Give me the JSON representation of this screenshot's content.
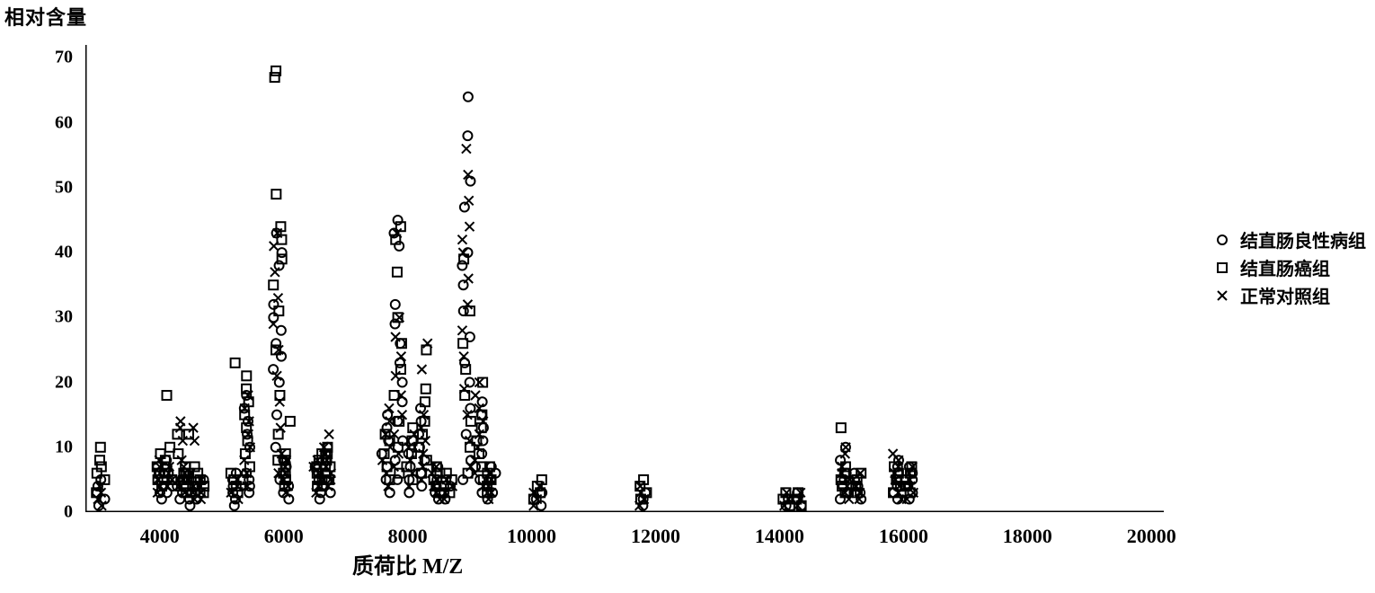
{
  "chart": {
    "type": "scatter",
    "ylabel": "相对含量",
    "xlabel": "质荷比 M/Z",
    "xlim": [
      2800,
      20200
    ],
    "ylim": [
      0,
      72
    ],
    "xtick_major_positions": [
      4000,
      6000,
      8000,
      10000,
      12000,
      14000,
      16000,
      18000,
      20000
    ],
    "xtick_major_labels": [
      "4000",
      "6000",
      "8000",
      "10000",
      "12000",
      "14000",
      "16000",
      "18000",
      "20000"
    ],
    "xtick_minor_step": 1000,
    "ytick_major_positions": [
      0,
      10,
      20,
      30,
      40,
      50,
      60,
      70
    ],
    "ytick_major_labels": [
      "0",
      "10",
      "20",
      "30",
      "40",
      "50",
      "60",
      "70"
    ],
    "ytick_minor_step": 5,
    "background_color": "#ffffff",
    "axis_color": "#000000",
    "axis_width": 3,
    "fontsize_title": 22,
    "fontsize_ticks": 22,
    "marker_size": 10,
    "marker_stroke": 2,
    "marker_color": "#000000",
    "legend": {
      "items": [
        {
          "marker": "circle",
          "label": "结直肠良性病组"
        },
        {
          "marker": "square",
          "label": "结直肠癌组"
        },
        {
          "marker": "x",
          "label": "正常对照组"
        }
      ],
      "fontsize": 20
    },
    "columns": [
      {
        "x": 3050,
        "circle": [
          1,
          2,
          3,
          4,
          5
        ],
        "square": [
          3,
          5,
          6,
          7,
          8,
          10
        ],
        "cross": [
          1,
          2,
          3,
          4
        ]
      },
      {
        "x": 4000,
        "circle": [
          2,
          3,
          4,
          5,
          6,
          7
        ],
        "square": [
          4,
          5,
          6,
          7,
          9
        ],
        "cross": [
          3,
          4,
          5,
          6,
          7,
          8
        ]
      },
      {
        "x": 4150,
        "circle": [
          3,
          4,
          5,
          6,
          7,
          8
        ],
        "square": [
          5,
          6,
          7,
          8,
          10,
          18
        ],
        "cross": [
          4,
          5,
          6,
          7
        ]
      },
      {
        "x": 4350,
        "circle": [
          2,
          3,
          4,
          5,
          6
        ],
        "square": [
          4,
          5,
          6,
          7,
          9,
          12
        ],
        "cross": [
          3,
          4,
          5,
          6,
          7,
          8,
          11,
          13,
          14
        ]
      },
      {
        "x": 4500,
        "circle": [
          1,
          2,
          3,
          4,
          5
        ],
        "square": [
          3,
          4,
          5,
          6,
          7,
          12
        ],
        "cross": [
          2,
          3,
          4,
          5,
          6,
          11,
          13
        ]
      },
      {
        "x": 4650,
        "circle": [
          2,
          3,
          4,
          5
        ],
        "square": [
          3,
          4,
          5,
          6
        ],
        "cross": [
          2,
          3,
          4,
          5
        ]
      },
      {
        "x": 5200,
        "circle": [
          1,
          2,
          3,
          4,
          5,
          6
        ],
        "square": [
          3,
          4,
          5,
          6,
          23
        ],
        "cross": [
          2,
          3,
          4,
          5
        ]
      },
      {
        "x": 5400,
        "circle": [
          3,
          4,
          5,
          6,
          10,
          12,
          14,
          16,
          18
        ],
        "square": [
          5,
          7,
          9,
          11,
          13,
          15,
          17,
          19,
          21
        ],
        "cross": [
          4,
          6,
          8,
          10,
          12,
          14,
          16,
          18
        ]
      },
      {
        "x": 5900,
        "circle": [
          5,
          10,
          15,
          20,
          22,
          24,
          26,
          28,
          30,
          32,
          38,
          40,
          43
        ],
        "square": [
          8,
          12,
          18,
          25,
          31,
          35,
          39,
          42,
          44,
          49,
          67,
          68
        ],
        "cross": [
          6,
          9,
          13,
          17,
          21,
          25,
          29,
          33,
          37,
          41,
          43
        ]
      },
      {
        "x": 6050,
        "circle": [
          2,
          3,
          4,
          5,
          6,
          7,
          8
        ],
        "square": [
          4,
          5,
          6,
          7,
          8,
          9,
          14
        ],
        "cross": [
          3,
          4,
          5,
          6,
          7,
          8
        ]
      },
      {
        "x": 6550,
        "circle": [
          2,
          3,
          4,
          5,
          6,
          7
        ],
        "square": [
          4,
          5,
          6,
          7,
          8,
          9
        ],
        "cross": [
          3,
          4,
          5,
          6,
          7,
          8
        ]
      },
      {
        "x": 6700,
        "circle": [
          3,
          4,
          5,
          6,
          7,
          8,
          9,
          10
        ],
        "square": [
          5,
          6,
          7,
          8,
          9,
          10
        ],
        "cross": [
          4,
          5,
          6,
          7,
          8,
          9,
          10,
          12
        ]
      },
      {
        "x": 7650,
        "circle": [
          3,
          5,
          7,
          9,
          11,
          13,
          15
        ],
        "square": [
          5,
          7,
          9,
          11,
          12
        ],
        "cross": [
          4,
          6,
          8,
          10,
          12,
          14,
          16
        ]
      },
      {
        "x": 7850,
        "circle": [
          5,
          8,
          11,
          14,
          17,
          20,
          23,
          26,
          29,
          32,
          41,
          43,
          45
        ],
        "square": [
          6,
          10,
          14,
          18,
          22,
          26,
          30,
          37,
          42,
          44
        ],
        "cross": [
          7,
          9,
          12,
          15,
          18,
          21,
          24,
          27,
          30,
          43
        ]
      },
      {
        "x": 8050,
        "circle": [
          3,
          5,
          7,
          9,
          11
        ],
        "square": [
          5,
          7,
          9,
          11,
          13
        ],
        "cross": [
          4,
          6,
          8,
          10,
          12
        ]
      },
      {
        "x": 8250,
        "circle": [
          4,
          6,
          8,
          10,
          12,
          14,
          16
        ],
        "square": [
          6,
          8,
          10,
          12,
          14,
          17,
          19,
          25
        ],
        "cross": [
          5,
          7,
          9,
          11,
          13,
          15,
          22,
          26
        ]
      },
      {
        "x": 8450,
        "circle": [
          2,
          3,
          4,
          5,
          6,
          7
        ],
        "square": [
          3,
          4,
          5,
          6,
          7
        ],
        "cross": [
          2,
          3,
          4,
          5,
          6,
          7
        ]
      },
      {
        "x": 8650,
        "circle": [
          2,
          3,
          4,
          5
        ],
        "square": [
          3,
          4,
          5,
          6
        ],
        "cross": [
          2,
          3,
          4,
          5
        ]
      },
      {
        "x": 8950,
        "circle": [
          5,
          8,
          12,
          16,
          20,
          23,
          27,
          31,
          35,
          38,
          40,
          47,
          51,
          58,
          64
        ],
        "square": [
          6,
          10,
          14,
          18,
          22,
          26,
          31,
          39
        ],
        "cross": [
          7,
          11,
          15,
          19,
          24,
          28,
          32,
          36,
          40,
          42,
          44,
          48,
          52,
          56
        ]
      },
      {
        "x": 9150,
        "circle": [
          3,
          5,
          7,
          9,
          11,
          13,
          15,
          17
        ],
        "square": [
          5,
          7,
          9,
          11,
          13,
          15,
          20
        ],
        "cross": [
          4,
          6,
          8,
          10,
          12,
          14,
          16,
          18,
          20
        ]
      },
      {
        "x": 9350,
        "circle": [
          2,
          3,
          4,
          5,
          6,
          7
        ],
        "square": [
          3,
          4,
          5,
          6,
          7
        ],
        "cross": [
          2,
          3,
          4,
          5,
          6
        ]
      },
      {
        "x": 10100,
        "circle": [
          1,
          2,
          3
        ],
        "square": [
          2,
          3,
          4,
          5
        ],
        "cross": [
          1,
          2,
          3,
          4
        ]
      },
      {
        "x": 11800,
        "circle": [
          1,
          2,
          3
        ],
        "square": [
          2,
          3,
          4,
          5
        ],
        "cross": [
          1,
          2,
          3,
          4
        ]
      },
      {
        "x": 14100,
        "circle": [
          1,
          2
        ],
        "square": [
          1,
          2,
          3
        ],
        "cross": [
          1,
          2,
          3
        ]
      },
      {
        "x": 14300,
        "circle": [
          1,
          2,
          3
        ],
        "square": [
          1,
          2,
          3
        ],
        "cross": [
          1,
          2,
          3
        ]
      },
      {
        "x": 15050,
        "circle": [
          2,
          3,
          4,
          5,
          6,
          8,
          10
        ],
        "square": [
          3,
          4,
          5,
          6,
          7,
          13
        ],
        "cross": [
          2,
          3,
          4,
          5,
          6,
          7,
          9,
          10
        ]
      },
      {
        "x": 15250,
        "circle": [
          2,
          3,
          4,
          5,
          6
        ],
        "square": [
          3,
          4,
          5,
          6
        ],
        "cross": [
          2,
          3,
          4,
          5,
          6
        ]
      },
      {
        "x": 15900,
        "circle": [
          2,
          3,
          4,
          5,
          6,
          7,
          8
        ],
        "square": [
          3,
          4,
          5,
          6,
          7
        ],
        "cross": [
          2,
          3,
          4,
          5,
          6,
          7,
          8,
          9
        ]
      },
      {
        "x": 16100,
        "circle": [
          2,
          3,
          4,
          5,
          6,
          7
        ],
        "square": [
          3,
          4,
          5,
          6,
          7
        ],
        "cross": [
          2,
          3,
          4,
          5,
          6,
          7
        ]
      }
    ]
  }
}
